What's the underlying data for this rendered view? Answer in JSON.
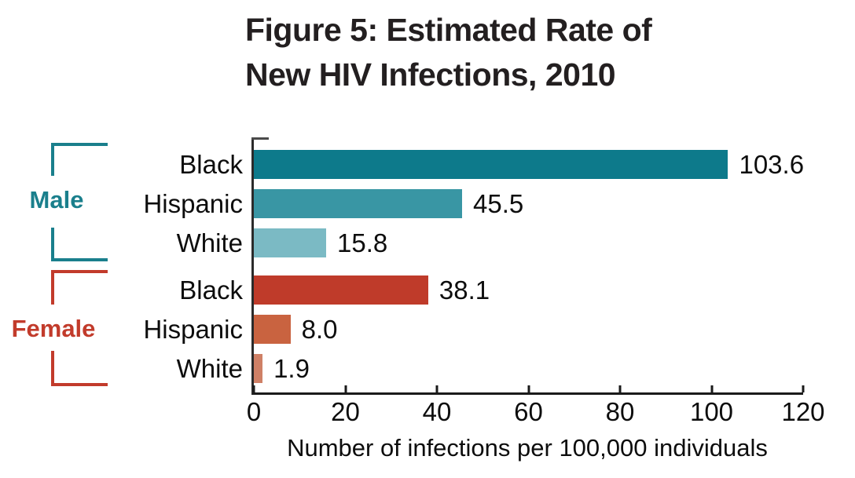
{
  "title": {
    "line1": "Figure 5: Estimated Rate of",
    "line2": "New HIV Infections, 2010"
  },
  "chart_data": {
    "type": "bar",
    "orientation": "horizontal",
    "title": "Figure 5: Estimated Rate of New HIV Infections, 2010",
    "xlabel": "Number of infections per 100,000 individuals",
    "xlim": [
      0,
      120
    ],
    "xticks": [
      0,
      20,
      40,
      60,
      80,
      100,
      120
    ],
    "grid": false,
    "legend_position": "left-brackets",
    "axis_color": "#1a1a1a",
    "groups": [
      {
        "name": "Male",
        "color": "#1a7f8c",
        "bars": [
          {
            "category": "Black",
            "value": 103.6,
            "value_label": "103.6",
            "color": "#0d7a8b"
          },
          {
            "category": "Hispanic",
            "value": 45.5,
            "value_label": "45.5",
            "color": "#3996a4"
          },
          {
            "category": "White",
            "value": 15.8,
            "value_label": "15.8",
            "color": "#7bbac4"
          }
        ]
      },
      {
        "name": "Female",
        "color": "#c23b2b",
        "bars": [
          {
            "category": "Black",
            "value": 38.1,
            "value_label": "38.1",
            "color": "#bf3b2a"
          },
          {
            "category": "Hispanic",
            "value": 8.0,
            "value_label": "8.0",
            "color": "#c96340"
          },
          {
            "category": "White",
            "value": 1.9,
            "value_label": "1.9",
            "color": "#cf8066"
          }
        ]
      }
    ]
  }
}
